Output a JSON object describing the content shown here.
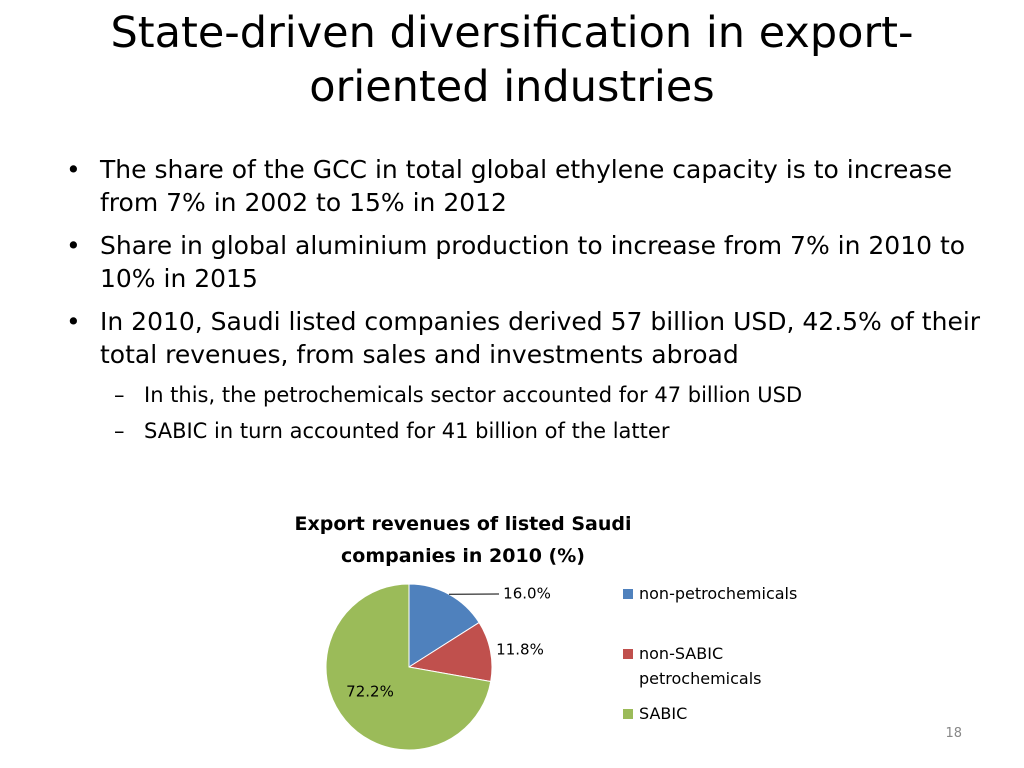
{
  "title": "State-driven diversification in export-oriented industries",
  "bullets": [
    {
      "text": "The share of the GCC in total global ethylene capacity is to increase from 7% in 2002 to 15% in 2012",
      "sub": []
    },
    {
      "text": "Share in global aluminium production to increase from 7% in 2010 to 10% in 2015",
      "sub": []
    },
    {
      "text": "In 2010, Saudi listed companies derived 57 billion USD, 42.5% of their total revenues, from sales and investments abroad",
      "sub": [
        "In this, the petrochemicals sector accounted for 47 billion USD",
        "SABIC in turn accounted for 41 billion of the latter"
      ]
    }
  ],
  "chart_data": {
    "type": "pie",
    "title": "Export revenues of listed Saudi companies in 2010 (%)",
    "categories": [
      "non-petrochemicals",
      "non-SABIC petrochemicals",
      "SABIC"
    ],
    "values": [
      16.0,
      11.8,
      72.2
    ],
    "value_labels": [
      "16.0%",
      "11.8%",
      "72.2%"
    ],
    "colors": [
      "#4f81bd",
      "#c0504d",
      "#9bbb59"
    ]
  },
  "page_number": "18"
}
